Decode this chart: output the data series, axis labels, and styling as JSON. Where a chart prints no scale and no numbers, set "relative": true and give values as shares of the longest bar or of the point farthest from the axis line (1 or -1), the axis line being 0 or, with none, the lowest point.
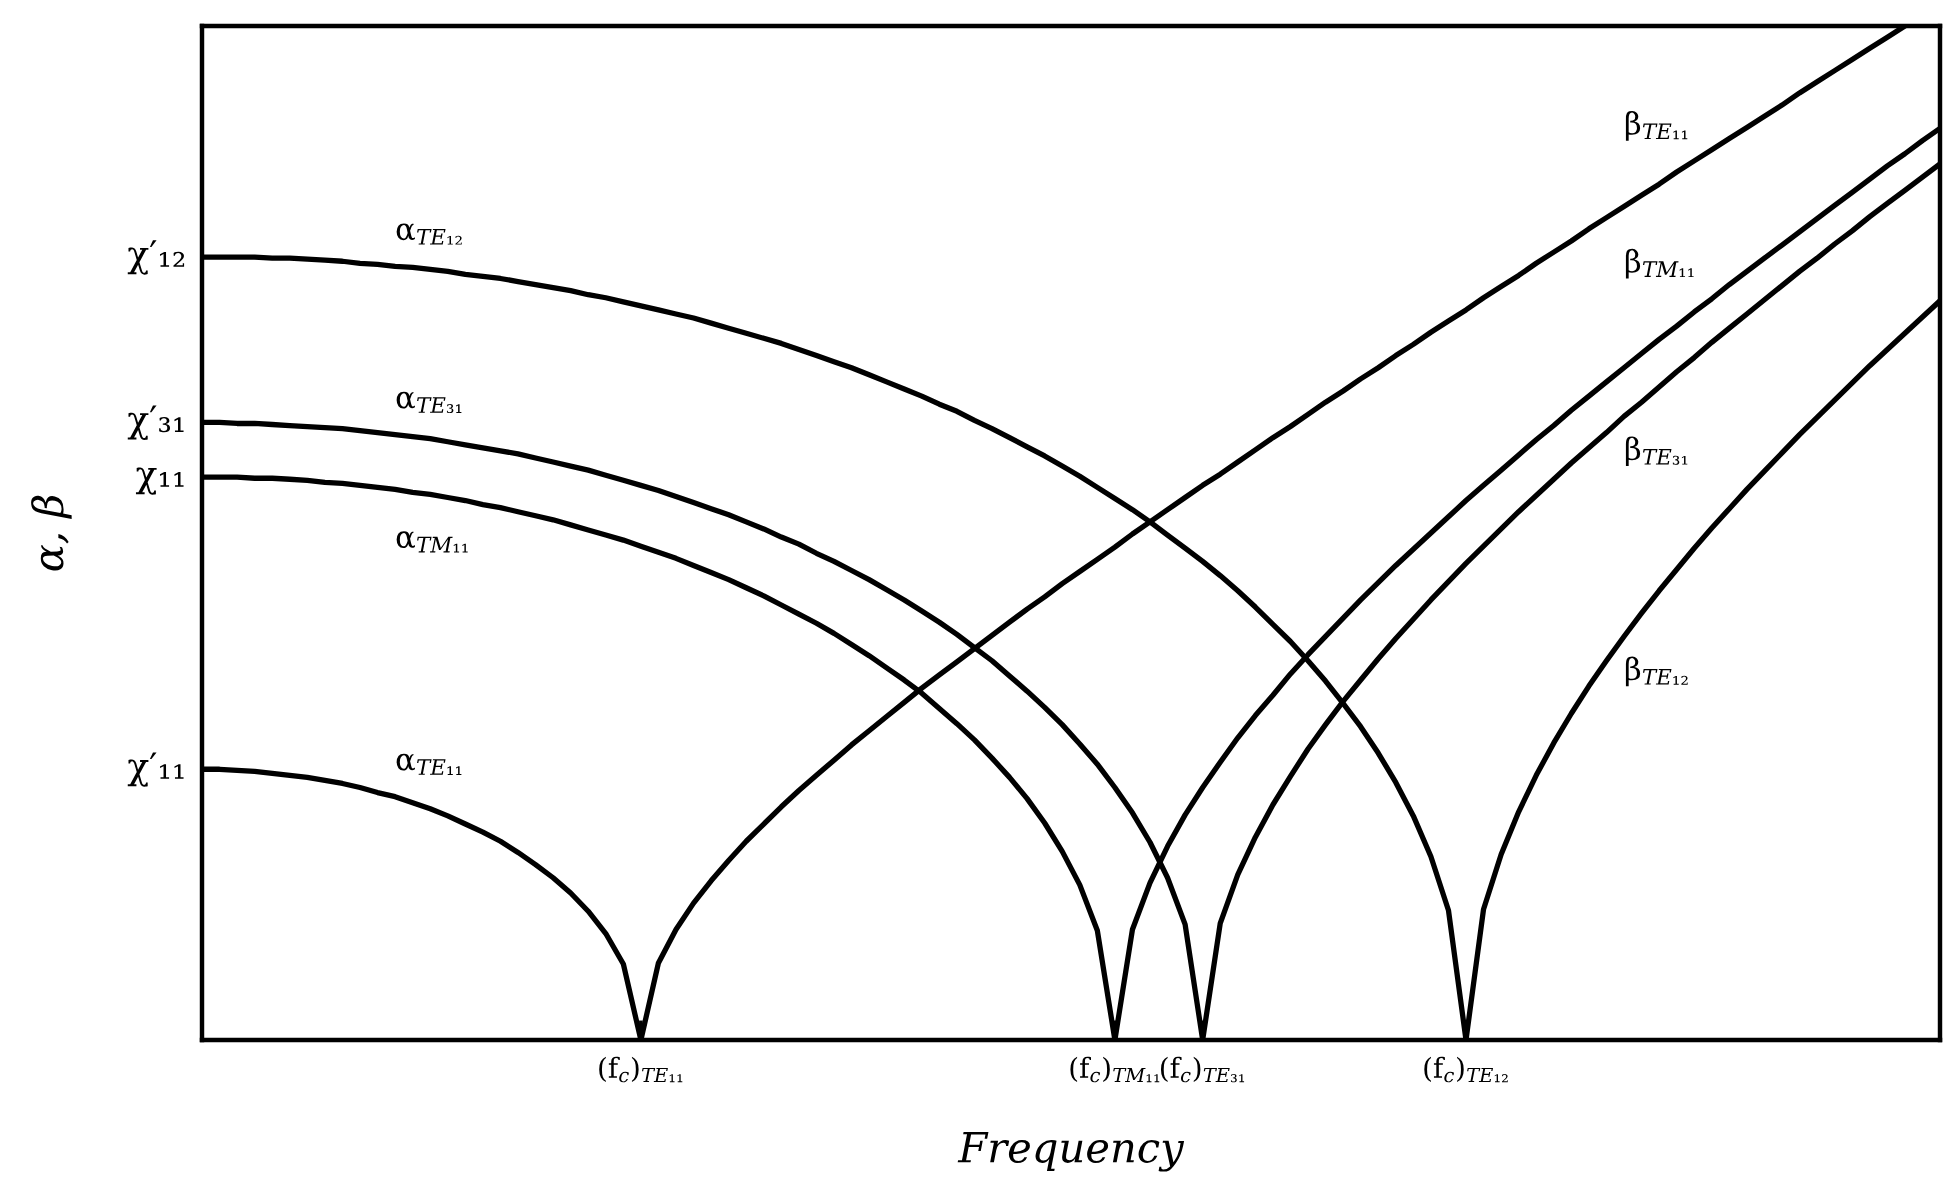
{
  "chart_data": {
    "type": "line",
    "relative": true,
    "xlabel": "Frequency",
    "ylabel": "α, β",
    "line_style": "solid",
    "categories": [
      null,
      null,
      null,
      null,
      null,
      null,
      null,
      null,
      null,
      null,
      null,
      null,
      null,
      null,
      null,
      null,
      null,
      null,
      null,
      null,
      null,
      null,
      null,
      null,
      null,
      "(f$_{c}$)$_{TE₁₁}$",
      null,
      null,
      null,
      null,
      null,
      null,
      null,
      null,
      null,
      null,
      null,
      null,
      null,
      null,
      null,
      null,
      null,
      null,
      null,
      null,
      null,
      null,
      null,
      null,
      null,
      null,
      "(f$_{c}$)$_{TM₁₁}$",
      null,
      null,
      null,
      null,
      "(f$_{c}$)$_{TE₃₁}$",
      null,
      null,
      null,
      null,
      null,
      null,
      null,
      null,
      null,
      null,
      null,
      null,
      null,
      null,
      "(f$_{c}$)$_{TE₁₂}$",
      null,
      null,
      null,
      null,
      null,
      null,
      null,
      null,
      null,
      null,
      null,
      null,
      null,
      null,
      null,
      null,
      null,
      null,
      null,
      null,
      null,
      null,
      null,
      null,
      null,
      null,
      null
    ],
    "series": [
      {
        "name": "α$_{TE₁₁}$",
        "color": "#000000",
        "values": [
          0.267,
          0.267,
          0.266,
          0.265,
          0.263,
          0.261,
          0.259,
          0.256,
          0.253,
          0.249,
          0.244,
          0.24,
          0.234,
          0.228,
          0.221,
          0.213,
          0.205,
          0.196,
          0.185,
          0.173,
          0.16,
          0.145,
          0.127,
          0.105,
          0.075,
          0,
          null,
          null,
          null,
          null,
          null,
          null,
          null,
          null,
          null,
          null,
          null,
          null,
          null,
          null,
          null,
          null,
          null,
          null,
          null,
          null,
          null,
          null,
          null,
          null,
          null,
          null,
          null,
          null,
          null,
          null,
          null,
          null,
          null,
          null,
          null,
          null,
          null,
          null,
          null,
          null,
          null,
          null,
          null,
          null,
          null,
          null,
          null,
          null,
          null,
          null,
          null,
          null,
          null,
          null,
          null,
          null,
          null,
          null,
          null,
          null,
          null,
          null,
          null,
          null,
          null,
          null,
          null,
          null,
          null,
          null,
          null,
          null,
          null,
          null
        ]
      },
      {
        "name": "β$_{TE₁₁}$",
        "color": "#000000",
        "values": [
          null,
          null,
          null,
          null,
          null,
          null,
          null,
          null,
          null,
          null,
          null,
          null,
          null,
          null,
          null,
          null,
          null,
          null,
          null,
          null,
          null,
          null,
          null,
          null,
          null,
          0,
          0.076,
          0.109,
          0.135,
          0.157,
          0.177,
          0.196,
          0.213,
          0.23,
          0.246,
          0.261,
          0.276,
          0.291,
          0.305,
          0.319,
          0.333,
          0.347,
          0.36,
          0.373,
          0.386,
          0.399,
          0.412,
          0.425,
          0.437,
          0.45,
          0.462,
          0.474,
          0.486,
          0.499,
          0.511,
          0.523,
          0.535,
          0.547,
          0.558,
          0.57,
          0.582,
          0.594,
          0.605,
          0.617,
          0.629,
          0.64,
          0.652,
          0.663,
          0.675,
          0.686,
          0.698,
          0.709,
          0.72,
          0.732,
          0.743,
          0.754,
          0.766,
          0.777,
          0.788,
          0.8,
          0.811,
          0.822,
          0.833,
          0.844,
          0.856,
          0.867,
          0.878,
          0.889,
          0.9,
          0.911,
          0.922,
          0.934,
          0.945,
          0.956,
          0.967,
          0.978,
          0.989,
          1.0,
          null,
          null
        ]
      },
      {
        "name": "α$_{TM₁₁}$",
        "color": "#000000",
        "values": [
          0.555,
          0.555,
          0.555,
          0.554,
          0.554,
          0.553,
          0.552,
          0.55,
          0.549,
          0.547,
          0.545,
          0.543,
          0.54,
          0.538,
          0.535,
          0.532,
          0.528,
          0.525,
          0.521,
          0.517,
          0.513,
          0.508,
          0.503,
          0.498,
          0.493,
          0.487,
          0.481,
          0.475,
          0.468,
          0.461,
          0.454,
          0.446,
          0.438,
          0.429,
          0.42,
          0.411,
          0.401,
          0.39,
          0.379,
          0.367,
          0.355,
          0.342,
          0.327,
          0.312,
          0.296,
          0.278,
          0.259,
          0.238,
          0.214,
          0.186,
          0.153,
          0.108,
          0,
          null,
          null,
          null,
          null,
          null,
          null,
          null,
          null,
          null,
          null,
          null,
          null,
          null,
          null,
          null,
          null,
          null,
          null,
          null,
          null,
          null,
          null,
          null,
          null,
          null,
          null,
          null,
          null,
          null,
          null,
          null,
          null,
          null,
          null,
          null,
          null,
          null,
          null,
          null,
          null,
          null,
          null,
          null,
          null,
          null,
          null,
          null
        ]
      },
      {
        "name": "β$_{TM₁₁}$",
        "color": "#000000",
        "values": [
          null,
          null,
          null,
          null,
          null,
          null,
          null,
          null,
          null,
          null,
          null,
          null,
          null,
          null,
          null,
          null,
          null,
          null,
          null,
          null,
          null,
          null,
          null,
          null,
          null,
          null,
          null,
          null,
          null,
          null,
          null,
          null,
          null,
          null,
          null,
          null,
          null,
          null,
          null,
          null,
          null,
          null,
          null,
          null,
          null,
          null,
          null,
          null,
          null,
          null,
          null,
          null,
          0,
          0.109,
          0.155,
          0.191,
          0.222,
          0.249,
          0.274,
          0.298,
          0.32,
          0.34,
          0.361,
          0.38,
          0.398,
          0.416,
          0.434,
          0.451,
          0.468,
          0.484,
          0.5,
          0.516,
          0.532,
          0.547,
          0.562,
          0.577,
          0.592,
          0.606,
          0.621,
          0.635,
          0.649,
          0.663,
          0.677,
          0.691,
          0.704,
          0.718,
          0.731,
          0.745,
          0.758,
          0.771,
          0.784,
          0.797,
          0.81,
          0.823,
          0.836,
          0.849,
          0.862,
          0.874,
          0.887,
          0.899
        ]
      },
      {
        "name": "α$_{TE₃₁}$",
        "color": "#000000",
        "values": [
          0.609,
          0.609,
          0.608,
          0.608,
          0.607,
          0.606,
          0.605,
          0.604,
          0.603,
          0.601,
          0.599,
          0.597,
          0.595,
          0.593,
          0.59,
          0.587,
          0.584,
          0.581,
          0.578,
          0.574,
          0.57,
          0.566,
          0.562,
          0.557,
          0.552,
          0.547,
          0.542,
          0.536,
          0.53,
          0.524,
          0.518,
          0.511,
          0.504,
          0.496,
          0.489,
          0.48,
          0.472,
          0.463,
          0.454,
          0.444,
          0.434,
          0.423,
          0.412,
          0.4,
          0.387,
          0.374,
          0.359,
          0.344,
          0.328,
          0.311,
          0.292,
          0.272,
          0.249,
          0.224,
          0.195,
          0.16,
          0.114,
          0,
          null,
          null,
          null,
          null,
          null,
          null,
          null,
          null,
          null,
          null,
          null,
          null,
          null,
          null,
          null,
          null,
          null,
          null,
          null,
          null,
          null,
          null,
          null,
          null,
          null,
          null,
          null,
          null,
          null,
          null,
          null,
          null,
          null,
          null,
          null,
          null,
          null,
          null,
          null,
          null,
          null,
          null
        ]
      },
      {
        "name": "β$_{TE₃₁}$",
        "color": "#000000",
        "values": [
          null,
          null,
          null,
          null,
          null,
          null,
          null,
          null,
          null,
          null,
          null,
          null,
          null,
          null,
          null,
          null,
          null,
          null,
          null,
          null,
          null,
          null,
          null,
          null,
          null,
          null,
          null,
          null,
          null,
          null,
          null,
          null,
          null,
          null,
          null,
          null,
          null,
          null,
          null,
          null,
          null,
          null,
          null,
          null,
          null,
          null,
          null,
          null,
          null,
          null,
          null,
          null,
          null,
          null,
          null,
          null,
          null,
          0,
          0.115,
          0.163,
          0.2,
          0.232,
          0.26,
          0.287,
          0.311,
          0.334,
          0.355,
          0.376,
          0.396,
          0.415,
          0.434,
          0.452,
          0.47,
          0.487,
          0.504,
          0.521,
          0.537,
          0.553,
          0.569,
          0.584,
          0.599,
          0.615,
          0.629,
          0.644,
          0.659,
          0.673,
          0.688,
          0.702,
          0.716,
          0.73,
          0.744,
          0.758,
          0.771,
          0.785,
          0.798,
          0.812,
          0.825,
          0.838,
          0.851,
          0.864
        ]
      },
      {
        "name": "α$_{TE₁₂}$",
        "color": "#000000",
        "values": [
          0.772,
          0.772,
          0.772,
          0.772,
          0.771,
          0.771,
          0.77,
          0.769,
          0.768,
          0.766,
          0.765,
          0.763,
          0.762,
          0.76,
          0.758,
          0.755,
          0.753,
          0.751,
          0.748,
          0.745,
          0.742,
          0.739,
          0.735,
          0.732,
          0.728,
          0.724,
          0.72,
          0.716,
          0.712,
          0.707,
          0.702,
          0.697,
          0.692,
          0.687,
          0.681,
          0.675,
          0.669,
          0.663,
          0.656,
          0.649,
          0.642,
          0.635,
          0.627,
          0.62,
          0.611,
          0.603,
          0.594,
          0.585,
          0.576,
          0.566,
          0.556,
          0.545,
          0.534,
          0.523,
          0.511,
          0.498,
          0.485,
          0.472,
          0.458,
          0.443,
          0.427,
          0.41,
          0.393,
          0.374,
          0.354,
          0.332,
          0.309,
          0.283,
          0.254,
          0.221,
          0.181,
          0.128,
          0,
          null,
          null,
          null,
          null,
          null,
          null,
          null,
          null,
          null,
          null,
          null,
          null,
          null,
          null,
          null,
          null,
          null,
          null,
          null,
          null,
          null,
          null,
          null,
          null,
          null,
          null,
          null
        ]
      },
      {
        "name": "β$_{TE₁₂}$",
        "color": "#000000",
        "values": [
          null,
          null,
          null,
          null,
          null,
          null,
          null,
          null,
          null,
          null,
          null,
          null,
          null,
          null,
          null,
          null,
          null,
          null,
          null,
          null,
          null,
          null,
          null,
          null,
          null,
          null,
          null,
          null,
          null,
          null,
          null,
          null,
          null,
          null,
          null,
          null,
          null,
          null,
          null,
          null,
          null,
          null,
          null,
          null,
          null,
          null,
          null,
          null,
          null,
          null,
          null,
          null,
          null,
          null,
          null,
          null,
          null,
          null,
          null,
          null,
          null,
          null,
          null,
          null,
          null,
          null,
          null,
          null,
          null,
          null,
          null,
          null,
          0,
          0.129,
          0.183,
          0.225,
          0.261,
          0.293,
          0.322,
          0.349,
          0.374,
          0.398,
          0.421,
          0.443,
          0.464,
          0.485,
          0.505,
          0.524,
          0.543,
          0.561,
          0.579,
          0.597,
          0.614,
          0.631,
          0.648,
          0.665,
          0.681,
          0.697,
          0.713,
          0.729
        ]
      }
    ],
    "annotations": [
      "χ′₁₁",
      "χ₁₁",
      "χ′₃₁",
      "χ′₁₂"
    ]
  }
}
